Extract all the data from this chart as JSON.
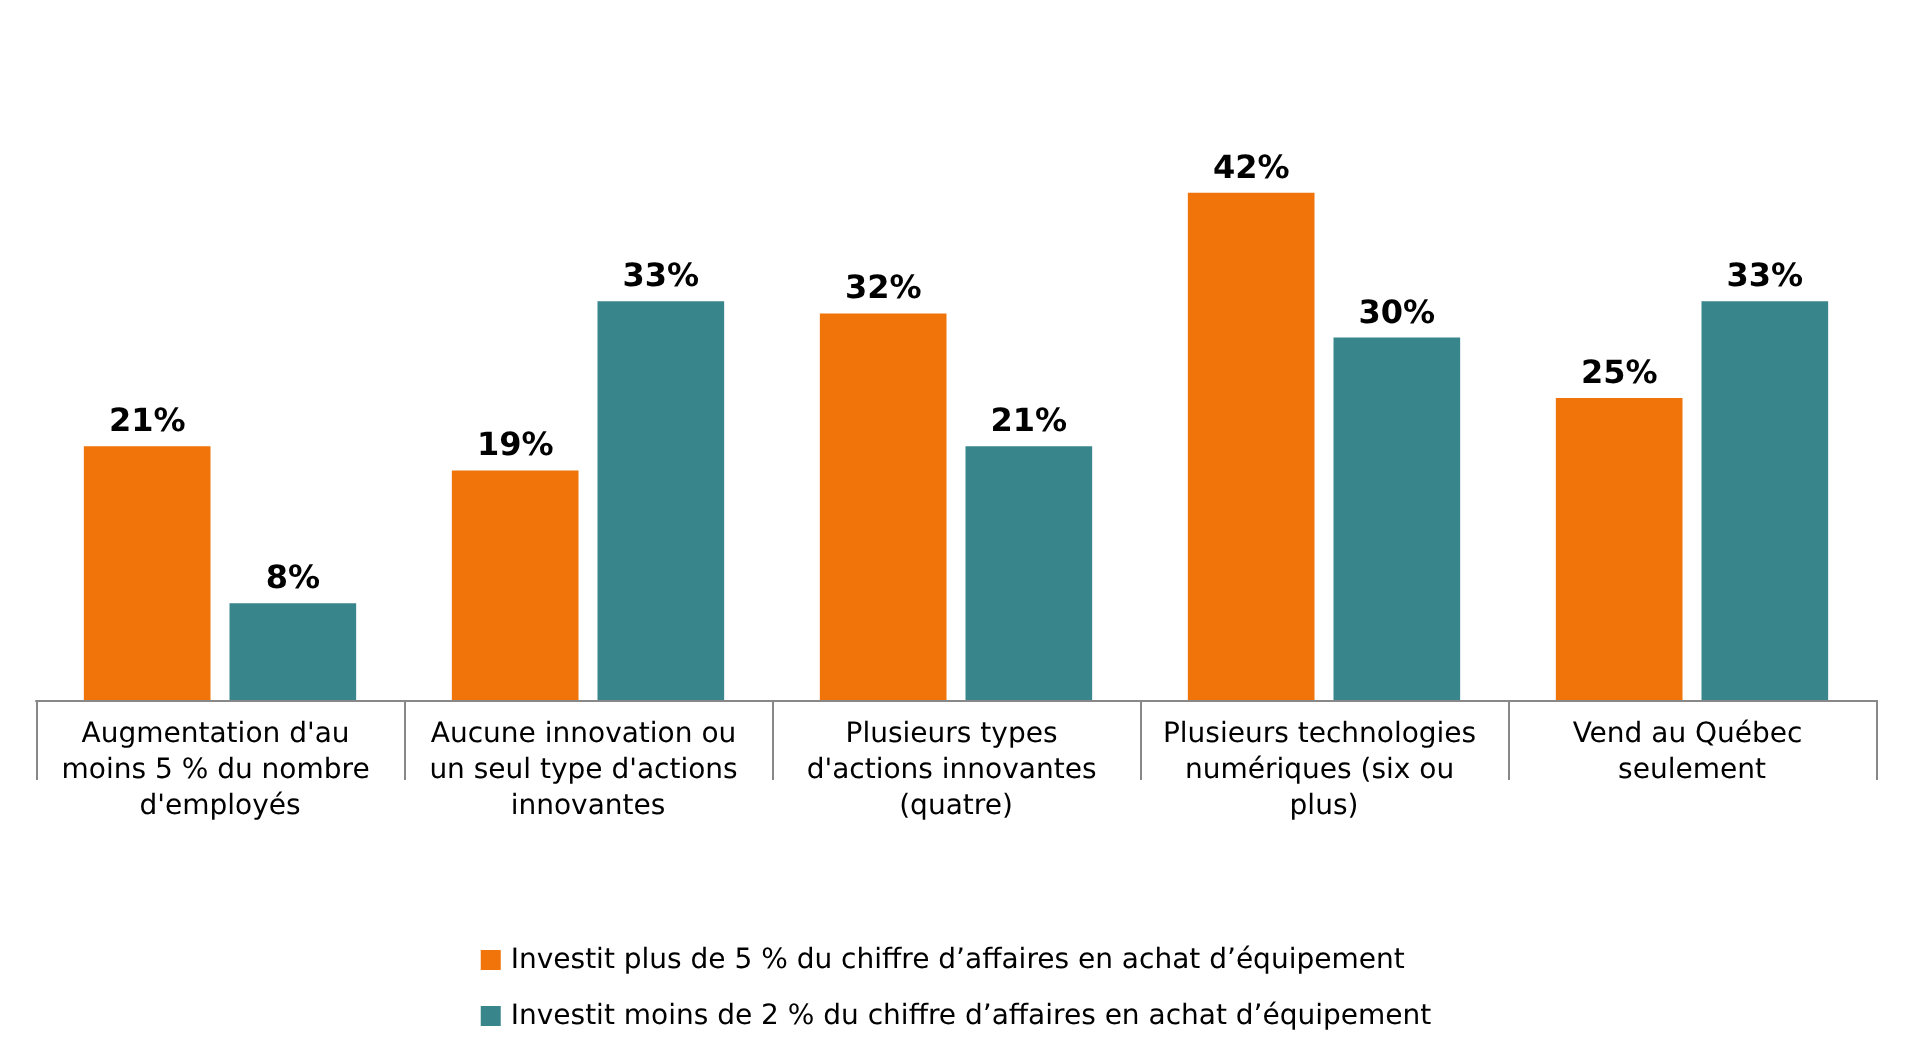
{
  "chart_data": {
    "type": "bar",
    "categories": [
      "Augmentation d'au moins 5 % du nombre d'employés",
      "Aucune innovation ou un seul type d'actions innovantes",
      "Plusieurs types d'actions innovantes (quatre)",
      "Plusieurs technologies numériques (six ou plus)",
      "Vend au Québec seulement"
    ],
    "series": [
      {
        "name": "Investit plus de 5 % du chiffre d’affaires en achat d’équipement",
        "color": "#f07409",
        "values": [
          21,
          19,
          32,
          42,
          25
        ],
        "value_labels": [
          "21%",
          "19%",
          "32%",
          "42%",
          "25%"
        ]
      },
      {
        "name": "Investit moins de 2 % du chiffre d’affaires en achat d’équipement",
        "color": "#38868c",
        "values": [
          8,
          33,
          21,
          30,
          33
        ],
        "value_labels": [
          "8%",
          "33%",
          "21%",
          "30%",
          "33%"
        ]
      }
    ],
    "legend": "bottom",
    "grid": false
  }
}
